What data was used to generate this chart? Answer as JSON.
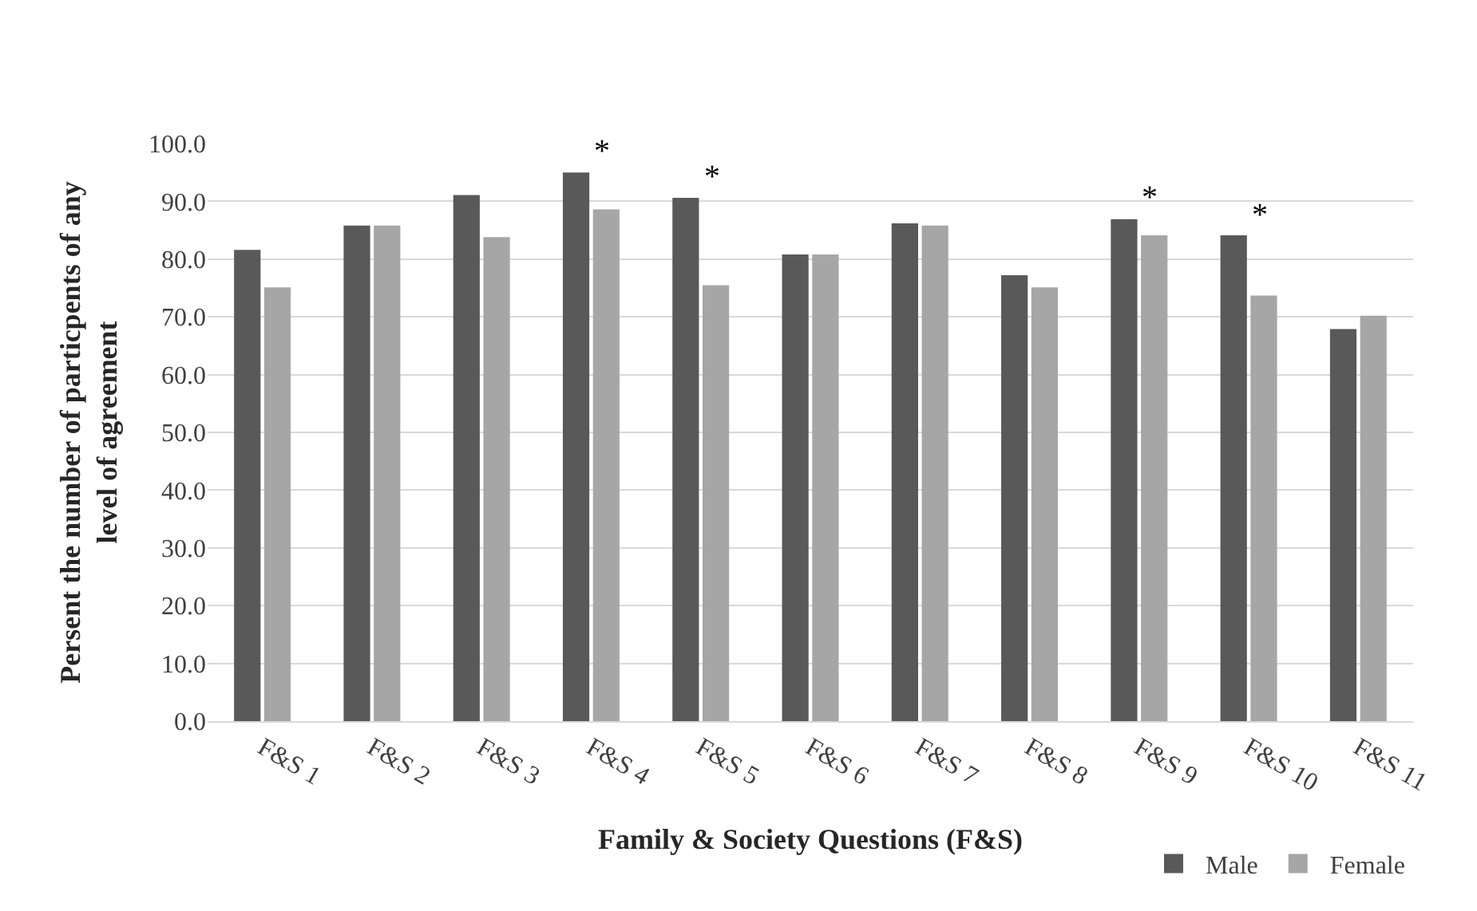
{
  "chart_data": {
    "type": "bar",
    "xlabel": "Family & Society Questions (F&S)",
    "ylabel": "Persent the number of particpents of any level of agreement",
    "categories": [
      "F&S 1",
      "F&S 2",
      "F&S 3",
      "F&S 4",
      "F&S 5",
      "F&S 6",
      "F&S 7",
      "F&S 8",
      "F&S 9",
      "F&S 10",
      "F&S 11"
    ],
    "series": [
      {
        "name": "Male",
        "color": "#595959",
        "values": [
          81.6,
          85.8,
          91.1,
          95.0,
          90.6,
          80.8,
          86.2,
          77.2,
          86.9,
          84.1,
          67.9
        ]
      },
      {
        "name": "Female",
        "color": "#a6a6a6",
        "values": [
          75.1,
          85.8,
          83.8,
          88.6,
          75.5,
          80.8,
          85.8,
          75.1,
          84.1,
          73.7,
          70.2
        ]
      }
    ],
    "ylim": [
      0,
      100
    ],
    "yticks": [
      {
        "value": 0,
        "label": "0.0"
      },
      {
        "value": 10,
        "label": "10.0"
      },
      {
        "value": 20,
        "label": "20.0"
      },
      {
        "value": 30,
        "label": "30.0"
      },
      {
        "value": 40,
        "label": "40.0"
      },
      {
        "value": 50,
        "label": "50.0"
      },
      {
        "value": 60,
        "label": "60.0"
      },
      {
        "value": 70,
        "label": "70.0"
      },
      {
        "value": 80,
        "label": "80.0"
      },
      {
        "value": 90,
        "label": "90.0"
      },
      {
        "value": 100,
        "label": "100.0"
      }
    ],
    "annotations": [
      {
        "text": "*",
        "x": "F&S 4",
        "y": 95.0
      },
      {
        "text": "*",
        "x": "F&S 5",
        "y": 90.6
      },
      {
        "text": "*",
        "x": "F&S 9",
        "y": 86.9
      },
      {
        "text": "*",
        "x": "F&S 10",
        "y": 84.1
      }
    ],
    "grid": "y",
    "legend": "bottom right"
  }
}
